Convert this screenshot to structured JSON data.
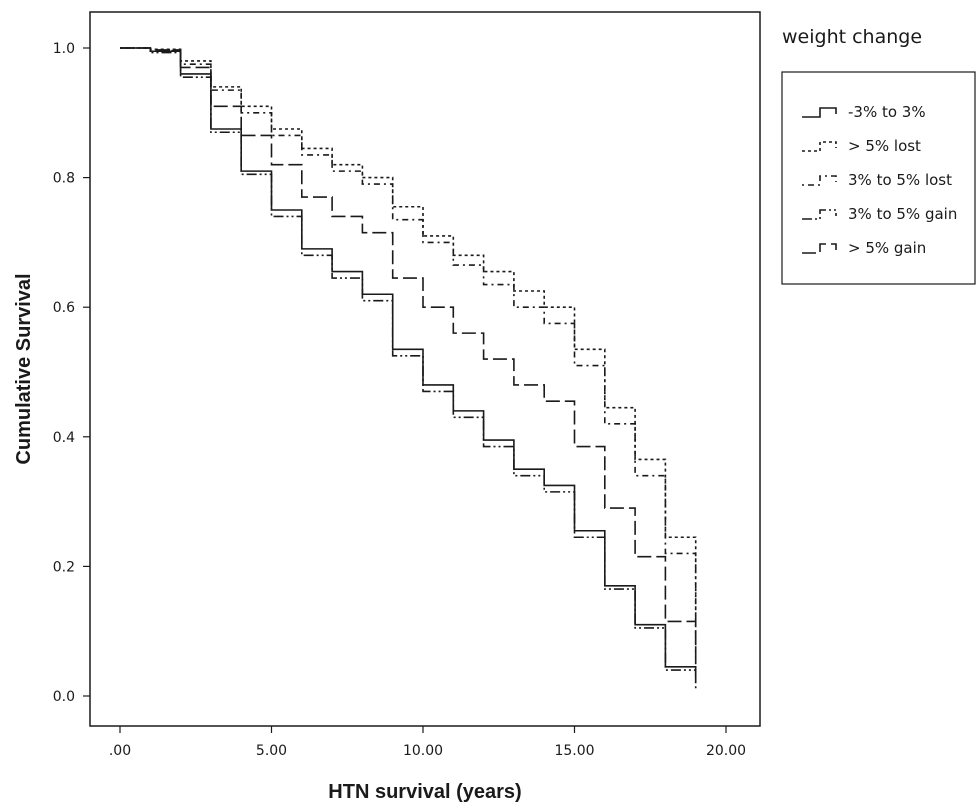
{
  "chart_data": {
    "type": "line",
    "step": "post",
    "title": "",
    "xlabel": "HTN survival (years)",
    "ylabel": "Cumulative Survival",
    "xlim": [
      0,
      20
    ],
    "ylim": [
      0,
      1
    ],
    "x_ticks": [
      0,
      5,
      10,
      15,
      20
    ],
    "x_tick_labels": [
      ".00",
      "5.00",
      "10.00",
      "15.00",
      "20.00"
    ],
    "y_ticks": [
      0,
      0.2,
      0.4,
      0.6,
      0.8,
      1.0
    ],
    "y_tick_labels": [
      "0.0",
      "0.2",
      "0.4",
      "0.6",
      "0.8",
      "1.0"
    ],
    "grid": false,
    "legend_title": "weight change",
    "legend_position": "right",
    "series": [
      {
        "name": "-3% to 3%",
        "color": "#1a1a1a",
        "dash": "solid",
        "x": [
          0,
          1,
          2,
          3,
          4,
          5,
          6,
          7,
          8,
          9,
          10,
          11,
          12,
          13,
          14,
          15,
          16,
          17,
          18,
          19
        ],
        "y": [
          1.0,
          0.995,
          0.96,
          0.875,
          0.81,
          0.75,
          0.69,
          0.655,
          0.62,
          0.535,
          0.48,
          0.44,
          0.395,
          0.35,
          0.325,
          0.255,
          0.17,
          0.11,
          0.045,
          0.04
        ]
      },
      {
        "name": "> 5% lost",
        "color": "#1a1a1a",
        "dash": "dotted",
        "x": [
          0,
          1,
          2,
          3,
          4,
          5,
          6,
          7,
          8,
          9,
          10,
          11,
          12,
          13,
          14,
          15,
          16,
          17,
          18,
          19
        ],
        "y": [
          1.0,
          0.998,
          0.98,
          0.94,
          0.91,
          0.875,
          0.845,
          0.82,
          0.8,
          0.755,
          0.71,
          0.68,
          0.655,
          0.625,
          0.6,
          0.535,
          0.445,
          0.365,
          0.245,
          0.08
        ]
      },
      {
        "name": "3% to 5% lost",
        "color": "#1a1a1a",
        "dash": "dashdot",
        "x": [
          0,
          1,
          2,
          3,
          4,
          5,
          6,
          7,
          8,
          9,
          10,
          11,
          12,
          13,
          14,
          15,
          16,
          17,
          18,
          19
        ],
        "y": [
          1.0,
          0.996,
          0.975,
          0.935,
          0.9,
          0.865,
          0.835,
          0.81,
          0.79,
          0.735,
          0.7,
          0.665,
          0.635,
          0.6,
          0.575,
          0.51,
          0.42,
          0.34,
          0.22,
          0.06
        ]
      },
      {
        "name": "3% to 5% gain",
        "color": "#1a1a1a",
        "dash": "dashdotdot",
        "x": [
          0,
          1,
          2,
          3,
          4,
          5,
          6,
          7,
          8,
          9,
          10,
          11,
          12,
          13,
          14,
          15,
          16,
          17,
          18,
          19
        ],
        "y": [
          1.0,
          0.993,
          0.955,
          0.87,
          0.805,
          0.74,
          0.68,
          0.645,
          0.61,
          0.525,
          0.47,
          0.43,
          0.385,
          0.34,
          0.315,
          0.245,
          0.165,
          0.105,
          0.04,
          0.01
        ]
      },
      {
        "name": "> 5% gain",
        "color": "#1a1a1a",
        "dash": "longdash",
        "x": [
          0,
          1,
          2,
          3,
          4,
          5,
          6,
          7,
          8,
          9,
          10,
          11,
          12,
          13,
          14,
          15,
          16,
          17,
          18,
          19
        ],
        "y": [
          1.0,
          0.997,
          0.97,
          0.91,
          0.865,
          0.82,
          0.77,
          0.74,
          0.715,
          0.645,
          0.6,
          0.56,
          0.52,
          0.48,
          0.455,
          0.385,
          0.29,
          0.215,
          0.115,
          0.02
        ]
      }
    ]
  }
}
